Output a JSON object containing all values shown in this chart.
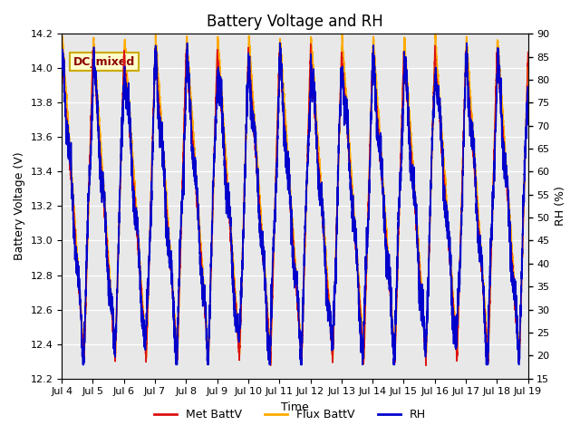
{
  "title": "Battery Voltage and RH",
  "xlabel": "Time",
  "ylabel_left": "Battery Voltage (V)",
  "ylabel_right": "RH (%)",
  "annotation": "DC_mixed",
  "ylim_left": [
    12.2,
    14.2
  ],
  "ylim_right": [
    15,
    90
  ],
  "yticks_left": [
    12.2,
    12.4,
    12.6,
    12.8,
    13.0,
    13.2,
    13.4,
    13.6,
    13.8,
    14.0,
    14.2
  ],
  "yticks_right": [
    15,
    20,
    25,
    30,
    35,
    40,
    45,
    50,
    55,
    60,
    65,
    70,
    75,
    80,
    85,
    90
  ],
  "xtick_labels": [
    "Jul 4",
    "Jul 5",
    "Jul 6",
    "Jul 7",
    "Jul 8",
    "Jul 9",
    "Jul 10",
    "Jul 11",
    "Jul 12",
    "Jul 13",
    "Jul 14",
    "Jul 15",
    "Jul 16",
    "Jul 17",
    "Jul 18",
    "Jul 19"
  ],
  "color_met": "#dd1111",
  "color_flux": "#ffaa00",
  "color_rh": "#0000cc",
  "background_color": "#e8e8e8",
  "legend_labels": [
    "Met BattV",
    "Flux BattV",
    "RH"
  ],
  "title_fontsize": 12,
  "label_fontsize": 9,
  "tick_fontsize": 8,
  "seed": 42
}
